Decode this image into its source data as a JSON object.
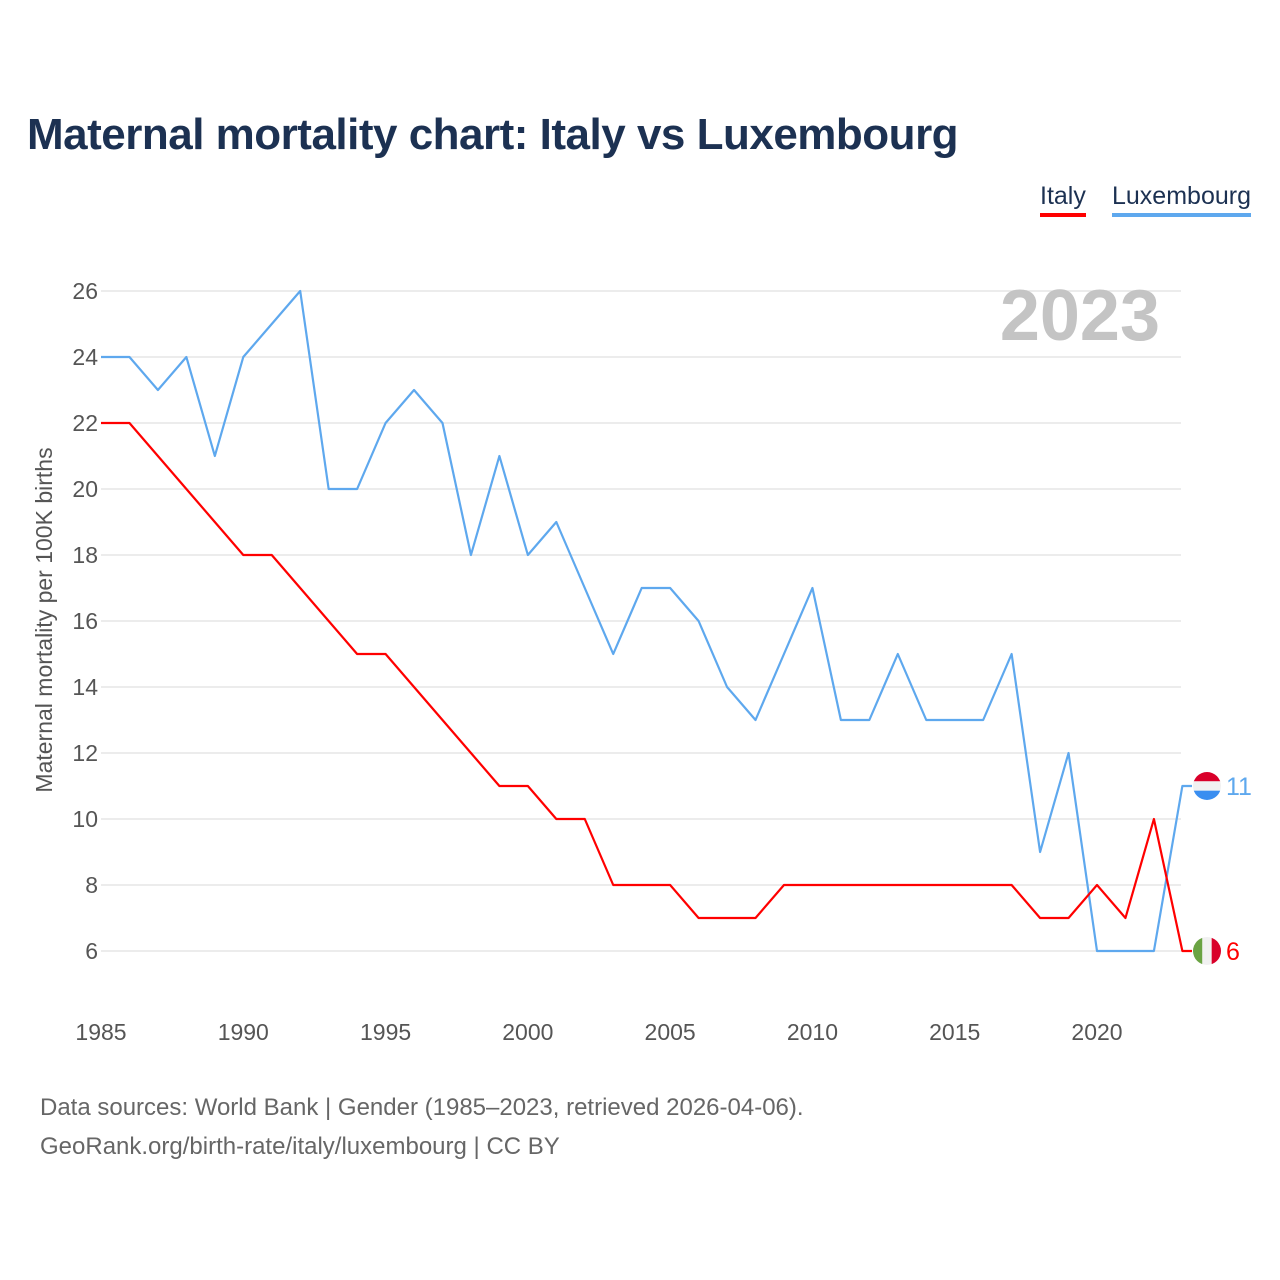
{
  "title": "Maternal mortality chart: Italy vs Luxembourg",
  "source_line1": "Data sources: World Bank | Gender (1985–2023, retrieved 2026-04-06).",
  "source_line2": "GeoRank.org/birth-rate/italy/luxembourg | CC BY",
  "chart_data": {
    "type": "line",
    "title": "Maternal mortality chart: Italy vs Luxembourg",
    "ylabel": "Maternal mortality per 100K births",
    "xlabel": "",
    "year_label": "2023",
    "xlim": [
      1985,
      2023
    ],
    "ylim": [
      5,
      27
    ],
    "xticks": [
      1985,
      1990,
      1995,
      2000,
      2005,
      2010,
      2015,
      2020
    ],
    "yticks": [
      6,
      8,
      10,
      12,
      14,
      16,
      18,
      20,
      22,
      24,
      26
    ],
    "grid": true,
    "legend_position": "top-right",
    "x": [
      1985,
      1986,
      1987,
      1988,
      1989,
      1990,
      1991,
      1992,
      1993,
      1994,
      1995,
      1996,
      1997,
      1998,
      1999,
      2000,
      2001,
      2002,
      2003,
      2004,
      2005,
      2006,
      2007,
      2008,
      2009,
      2010,
      2011,
      2012,
      2013,
      2014,
      2015,
      2016,
      2017,
      2018,
      2019,
      2020,
      2021,
      2022,
      2023
    ],
    "series": [
      {
        "name": "Italy",
        "color": "#ff0000",
        "end_label": "6",
        "values": [
          22,
          22,
          21,
          20,
          19,
          18,
          18,
          17,
          16,
          15,
          15,
          14,
          13,
          12,
          11,
          11,
          10,
          10,
          8,
          8,
          8,
          7,
          7,
          7,
          8,
          8,
          8,
          8,
          8,
          8,
          8,
          8,
          8,
          7,
          7,
          8,
          7,
          10,
          6
        ]
      },
      {
        "name": "Luxembourg",
        "color": "#5ea8ee",
        "end_label": "11",
        "values": [
          24,
          24,
          23,
          24,
          21,
          24,
          25,
          26,
          20,
          20,
          22,
          23,
          22,
          18,
          21,
          18,
          19,
          17,
          15,
          17,
          17,
          16,
          14,
          13,
          15,
          17,
          13,
          13,
          15,
          13,
          13,
          13,
          15,
          9,
          12,
          6,
          6,
          6,
          11
        ]
      }
    ]
  }
}
